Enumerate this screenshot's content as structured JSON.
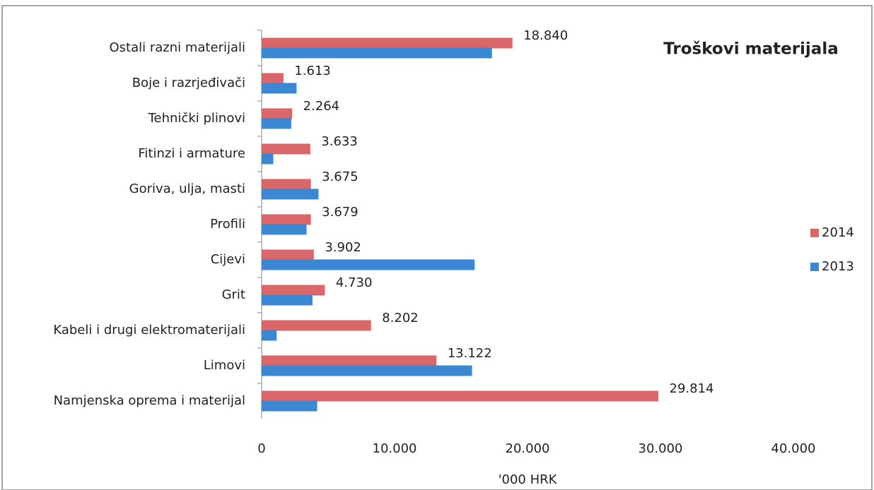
{
  "chart_data": {
    "type": "hbar",
    "title": "Troškovi materijala",
    "xlabel": "'000 HRK",
    "categories": [
      "Ostali razni materijali",
      "Boje i razrjeđivači",
      "Tehnički plinovi",
      "Fitinzi i armature",
      "Goriva, ulja, masti",
      "Profili",
      "Cijevi",
      "Grit",
      "Kabeli i drugi elektromaterijali",
      "Limovi",
      "Namjenska oprema i materijal"
    ],
    "series": [
      {
        "name": "2014",
        "color": "#d9676a",
        "values": [
          18840,
          1613,
          2264,
          3633,
          3675,
          3679,
          3902,
          4730,
          8202,
          13122,
          29814
        ],
        "value_labels": [
          "18.840",
          "1.613",
          "2.264",
          "3.633",
          "3.675",
          "3.679",
          "3.902",
          "4.730",
          "8.202",
          "13.122",
          "29.814"
        ]
      },
      {
        "name": "2013",
        "color": "#3b87d2",
        "values": [
          17300,
          2600,
          2200,
          850,
          4250,
          3350,
          16000,
          3800,
          1100,
          15800,
          4150
        ]
      }
    ],
    "xlim": [
      0,
      40000
    ],
    "xticks": [
      0,
      {
        "value": 10000,
        "label": "10.000"
      },
      {
        "value": 20000,
        "label": "20.000"
      },
      {
        "value": 30000,
        "label": "30.000"
      },
      {
        "value": 40000,
        "label": "40.000"
      }
    ],
    "legend": "right"
  }
}
